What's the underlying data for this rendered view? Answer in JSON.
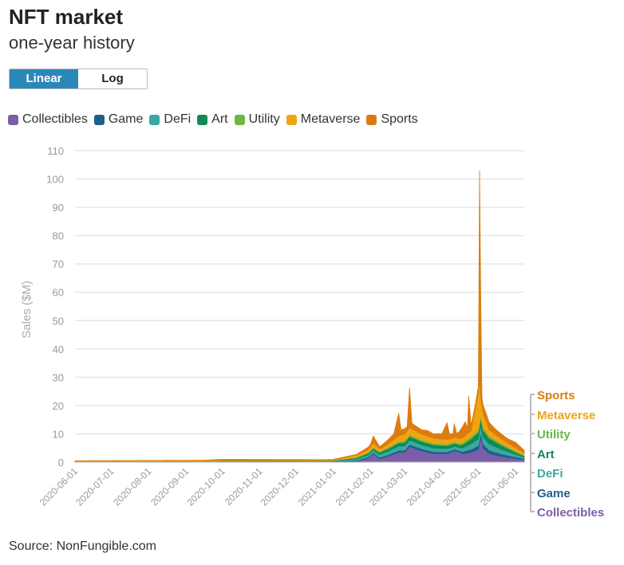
{
  "header": {
    "title": "NFT market",
    "subtitle": "one-year history"
  },
  "scale_toggle": {
    "linear_label": "Linear",
    "log_label": "Log",
    "selected": "Linear"
  },
  "source": "Source: NonFungible.com",
  "chart_data": {
    "type": "area",
    "stacked": true,
    "ylabel": "Sales ($M)",
    "xlabel": "",
    "ylim": [
      0,
      110
    ],
    "yticks": [
      0,
      10,
      20,
      30,
      40,
      50,
      60,
      70,
      80,
      90,
      100,
      110
    ],
    "xlim": [
      "2020-06-01",
      "2021-06-08"
    ],
    "xticks": [
      "2020-06-01",
      "2020-07-01",
      "2020-08-01",
      "2020-09-01",
      "2020-10-01",
      "2020-11-01",
      "2020-12-01",
      "2021-01-01",
      "2021-02-01",
      "2021-03-01",
      "2021-04-01",
      "2021-05-01",
      "2021-06-01"
    ],
    "grid": true,
    "legend_position": "top",
    "series": [
      {
        "name": "Collectibles",
        "color": "#7b5ea7",
        "points": [
          [
            "2020-06-01",
            0.15
          ],
          [
            "2020-09-15",
            0.15
          ],
          [
            "2020-10-01",
            0.25
          ],
          [
            "2020-12-20",
            0.2
          ],
          [
            "2021-01-20",
            0.3
          ],
          [
            "2021-01-30",
            1.5
          ],
          [
            "2021-02-03",
            3
          ],
          [
            "2021-02-08",
            1.2
          ],
          [
            "2021-02-15",
            2
          ],
          [
            "2021-02-24",
            3.5
          ],
          [
            "2021-03-01",
            3.5
          ],
          [
            "2021-03-05",
            5.5
          ],
          [
            "2021-03-15",
            4
          ],
          [
            "2021-03-25",
            3
          ],
          [
            "2021-04-05",
            3
          ],
          [
            "2021-04-12",
            4
          ],
          [
            "2021-04-18",
            3
          ],
          [
            "2021-04-25",
            3.5
          ],
          [
            "2021-05-01",
            4.5
          ],
          [
            "2021-05-03",
            9
          ],
          [
            "2021-05-05",
            5
          ],
          [
            "2021-05-10",
            3
          ],
          [
            "2021-05-20",
            2
          ],
          [
            "2021-06-01",
            1.3
          ],
          [
            "2021-06-08",
            1
          ]
        ]
      },
      {
        "name": "Game",
        "color": "#1f5f8b",
        "points": [
          [
            "2020-06-01",
            0.05
          ],
          [
            "2020-12-31",
            0.1
          ],
          [
            "2021-02-01",
            0.4
          ],
          [
            "2021-03-05",
            0.8
          ],
          [
            "2021-04-15",
            0.6
          ],
          [
            "2021-05-03",
            1.5
          ],
          [
            "2021-06-08",
            0.3
          ]
        ]
      },
      {
        "name": "DeFi",
        "color": "#3aa9a1",
        "points": [
          [
            "2020-06-01",
            0.05
          ],
          [
            "2020-12-31",
            0.1
          ],
          [
            "2021-02-01",
            0.8
          ],
          [
            "2021-02-24",
            1.5
          ],
          [
            "2021-03-05",
            1.5
          ],
          [
            "2021-04-15",
            1
          ],
          [
            "2021-05-03",
            2.5
          ],
          [
            "2021-06-08",
            0.5
          ]
        ]
      },
      {
        "name": "Art",
        "color": "#138a55",
        "points": [
          [
            "2020-06-01",
            0.05
          ],
          [
            "2020-12-31",
            0.1
          ],
          [
            "2021-02-01",
            0.6
          ],
          [
            "2021-03-05",
            1.3
          ],
          [
            "2021-04-15",
            1
          ],
          [
            "2021-05-03",
            2.5
          ],
          [
            "2021-06-08",
            0.4
          ]
        ]
      },
      {
        "name": "Utility",
        "color": "#6fb744",
        "points": [
          [
            "2020-06-01",
            0.02
          ],
          [
            "2020-12-31",
            0.05
          ],
          [
            "2021-02-01",
            0.3
          ],
          [
            "2021-03-05",
            0.6
          ],
          [
            "2021-04-15",
            0.5
          ],
          [
            "2021-05-03",
            1
          ],
          [
            "2021-06-08",
            0.2
          ]
        ]
      },
      {
        "name": "Metaverse",
        "color": "#eea512",
        "points": [
          [
            "2020-06-01",
            0.1
          ],
          [
            "2020-10-01",
            0.2
          ],
          [
            "2020-12-31",
            0.15
          ],
          [
            "2021-01-30",
            1
          ],
          [
            "2021-02-03",
            1.5
          ],
          [
            "2021-02-10",
            0.8
          ],
          [
            "2021-02-24",
            2
          ],
          [
            "2021-03-05",
            2.5
          ],
          [
            "2021-03-15",
            2
          ],
          [
            "2021-04-10",
            1.5
          ],
          [
            "2021-04-25",
            2
          ],
          [
            "2021-05-02",
            15
          ],
          [
            "2021-05-03",
            6
          ],
          [
            "2021-05-10",
            2
          ],
          [
            "2021-06-08",
            0.8
          ]
        ]
      },
      {
        "name": "Sports",
        "color": "#dc7c10",
        "points": [
          [
            "2020-06-01",
            0.1
          ],
          [
            "2020-09-15",
            0.1
          ],
          [
            "2020-10-01",
            0.3
          ],
          [
            "2020-11-15",
            0.25
          ],
          [
            "2020-12-31",
            0.2
          ],
          [
            "2021-01-20",
            0.3
          ],
          [
            "2021-02-01",
            1
          ],
          [
            "2021-02-03",
            2.5
          ],
          [
            "2021-02-08",
            0.8
          ],
          [
            "2021-02-20",
            2
          ],
          [
            "2021-02-24",
            8
          ],
          [
            "2021-02-26",
            2
          ],
          [
            "2021-03-01",
            2
          ],
          [
            "2021-03-03",
            1.5
          ],
          [
            "2021-03-05",
            14
          ],
          [
            "2021-03-07",
            2
          ],
          [
            "2021-03-15",
            1.5
          ],
          [
            "2021-03-20",
            2
          ],
          [
            "2021-03-25",
            1.5
          ],
          [
            "2021-04-01",
            2
          ],
          [
            "2021-04-05",
            6
          ],
          [
            "2021-04-07",
            2
          ],
          [
            "2021-04-10",
            1.5
          ],
          [
            "2021-04-11",
            5
          ],
          [
            "2021-04-13",
            1.5
          ],
          [
            "2021-04-20",
            5
          ],
          [
            "2021-04-22",
            2
          ],
          [
            "2021-04-23",
            13
          ],
          [
            "2021-04-25",
            2
          ],
          [
            "2021-04-28",
            1.5
          ],
          [
            "2021-05-01",
            2
          ],
          [
            "2021-05-02",
            74
          ],
          [
            "2021-05-03",
            35
          ],
          [
            "2021-05-04",
            3
          ],
          [
            "2021-05-08",
            3
          ],
          [
            "2021-05-15",
            2
          ],
          [
            "2021-05-25",
            1.5
          ],
          [
            "2021-06-01",
            2
          ],
          [
            "2021-06-08",
            1
          ]
        ]
      }
    ]
  }
}
